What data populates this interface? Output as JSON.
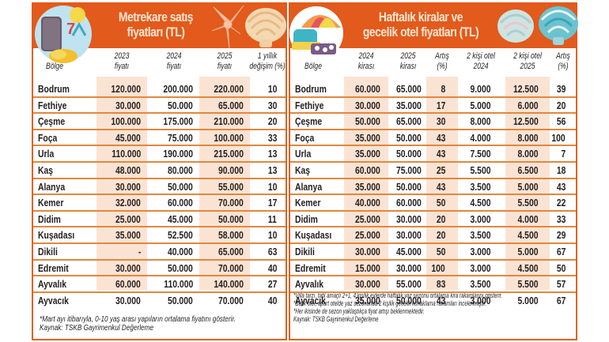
{
  "left_table": {
    "title_line1": "Metrekare satış",
    "title_line2": "fiyatları (TL)",
    "headers": {
      "region": "Bölge",
      "c1_line1": "2023",
      "c1_line2": "fiyatı",
      "c2_line1": "2024",
      "c2_line2": "fiyatı",
      "c3_line1": "2025",
      "c3_line2": "fiyatı",
      "c4_line1": "1 yıllık",
      "c4_line2": "değişim (%)"
    },
    "rows": [
      {
        "region": "Bodrum",
        "p2023": "120.000",
        "p2024": "200.000",
        "p2025": "220.000",
        "change": "10"
      },
      {
        "region": "Fethiye",
        "p2023": "30.000",
        "p2024": "50.000",
        "p2025": "65.000",
        "change": "30"
      },
      {
        "region": "Çeşme",
        "p2023": "100.000",
        "p2024": "175.000",
        "p2025": "210.000",
        "change": "20"
      },
      {
        "region": "Foça",
        "p2023": "45.000",
        "p2024": "75.000",
        "p2025": "100.000",
        "change": "33"
      },
      {
        "region": "Urla",
        "p2023": "110.000",
        "p2024": "190.000",
        "p2025": "215.000",
        "change": "13"
      },
      {
        "region": "Kaş",
        "p2023": "48.000",
        "p2024": "80.000",
        "p2025": "90.000",
        "change": "13"
      },
      {
        "region": "Alanya",
        "p2023": "30.000",
        "p2024": "50.000",
        "p2025": "55.000",
        "change": "10"
      },
      {
        "region": "Kemer",
        "p2023": "32.000",
        "p2024": "60.000",
        "p2025": "70.000",
        "change": "17"
      },
      {
        "region": "Didim",
        "p2023": "25.000",
        "p2024": "45.000",
        "p2025": "50.000",
        "change": "11"
      },
      {
        "region": "Kuşadası",
        "p2023": "35.000",
        "p2024": "52.500",
        "p2025": "58.000",
        "change": "10"
      },
      {
        "region": "Dikili",
        "p2023": "-",
        "p2024": "40.000",
        "p2025": "65.000",
        "change": "63"
      },
      {
        "region": "Edremit",
        "p2023": "30.000",
        "p2024": "50.000",
        "p2025": "70.000",
        "change": "40"
      },
      {
        "region": "Ayvalık",
        "p2023": "60.000",
        "p2024": "110.000",
        "p2025": "140.000",
        "change": "27"
      },
      {
        "region": "Ayvacık",
        "p2023": "30.000",
        "p2024": "50.000",
        "p2025": "70.000",
        "change": "40"
      }
    ],
    "footnotes": [
      "*Mart ayı itibarıyla, 0-10 yaş arası yapıların ortalama fiyatını gösterir.",
      "Kaynak: TSKB Gayrimenkul Değerleme"
    ]
  },
  "right_table": {
    "title_line1": "Haftalık kiralar ve",
    "title_line2": "gecelik otel fiyatları (TL)",
    "headers": {
      "region": "Bölge",
      "c1_line1": "2024",
      "c1_line2": "kirası",
      "c2_line1": "2025",
      "c2_line2": "kirası",
      "c3_line1": "Artış",
      "c3_line2": "(%)",
      "c4_line1": "2 kişi otel",
      "c4_line2": "2024",
      "c5_line1": "2 kişi otel",
      "c5_line2": "2025",
      "c6_line1": "Artış",
      "c6_line2": "(%)"
    },
    "rows": [
      {
        "region": "Bodrum",
        "rent2024": "60.000",
        "rent2025": "65.000",
        "rent_change": "8",
        "hotel2024": "9.000",
        "hotel2025": "12.500",
        "hotel_change": "39"
      },
      {
        "region": "Fethiye",
        "rent2024": "30.000",
        "rent2025": "35.000",
        "rent_change": "17",
        "hotel2024": "5.000",
        "hotel2025": "6.000",
        "hotel_change": "20"
      },
      {
        "region": "Çeşme",
        "rent2024": "50.000",
        "rent2025": "65.000",
        "rent_change": "30",
        "hotel2024": "8.000",
        "hotel2025": "12.500",
        "hotel_change": "56"
      },
      {
        "region": "Foça",
        "rent2024": "35.000",
        "rent2025": "50.000",
        "rent_change": "43",
        "hotel2024": "4.000",
        "hotel2025": "8.000",
        "hotel_change": "100"
      },
      {
        "region": "Urla",
        "rent2024": "35.000",
        "rent2025": "50.000",
        "rent_change": "43",
        "hotel2024": "7.500",
        "hotel2025": "8.000",
        "hotel_change": "7"
      },
      {
        "region": "Kaş",
        "rent2024": "60.000",
        "rent2025": "75.000",
        "rent_change": "25",
        "hotel2024": "5.500",
        "hotel2025": "6.500",
        "hotel_change": "18"
      },
      {
        "region": "Alanya",
        "rent2024": "35.000",
        "rent2025": "50.000",
        "rent_change": "43",
        "hotel2024": "3.500",
        "hotel2025": "5.000",
        "hotel_change": "43"
      },
      {
        "region": "Kemer",
        "rent2024": "40.000",
        "rent2025": "60.000",
        "rent_change": "50",
        "hotel2024": "4.500",
        "hotel2025": "5.500",
        "hotel_change": "22"
      },
      {
        "region": "Didim",
        "rent2024": "25.000",
        "rent2025": "30.000",
        "rent_change": "20",
        "hotel2024": "3.000",
        "hotel2025": "4.000",
        "hotel_change": "33"
      },
      {
        "region": "Kuşadası",
        "rent2024": "25.000",
        "rent2025": "30.000",
        "rent_change": "20",
        "hotel2024": "3.500",
        "hotel2025": "4.500",
        "hotel_change": "29"
      },
      {
        "region": "Dikili",
        "rent2024": "30.000",
        "rent2025": "45.000",
        "rent_change": "50",
        "hotel2024": "3.000",
        "hotel2025": "5.000",
        "hotel_change": "67"
      },
      {
        "region": "Edremit",
        "rent2024": "15.000",
        "rent2025": "30.000",
        "rent_change": "100",
        "hotel2024": "3.000",
        "hotel2025": "4.500",
        "hotel_change": "50"
      },
      {
        "region": "Ayvalık",
        "rent2024": "30.000",
        "rent2025": "55.000",
        "rent_change": "83",
        "hotel2024": "3.500",
        "hotel2025": "5.500",
        "hotel_change": "57"
      },
      {
        "region": "Ayvacık",
        "rent2024": "35.000",
        "rent2025": "50.000",
        "rent_change": "43",
        "hotel2024": "3.000",
        "hotel2025": "5.000",
        "hotel_change": "67"
      }
    ],
    "footnotes": [
      "*Villa tarzı, tatil amaçlı 2+1, 4 kişilik evlerde haftalık yaz sezonu ortalama kira rakamlarını gösterir.",
      "*Butik otel, apart otelde yaz sezonunda 2 kişilik gecelik konaklama rakamları incelenmiştir.",
      "*Her ikisinde de sezon yaklaştıkça fiyat artışı beklenmektedir.",
      "Kaynak: TSKB Gayrimenkul Değerleme"
    ]
  },
  "colors": {
    "banner_orange": "#e25a1c",
    "border_orange": "#e0611d",
    "row_divider": "#e0883f",
    "column_shade": "#fbe3d3",
    "title_text": "#fde6d2",
    "body_text": "#231f20"
  },
  "icons": {
    "left_banner_left": "suitcase-beach-icon",
    "left_banner_mid": "starfish-icon",
    "left_banner_right": "seashell-icon",
    "right_banner_left": "beach-umbrella-icon",
    "right_banner_mid": "seashell-icon",
    "right_banner_right": "seashell-blue-icon"
  }
}
